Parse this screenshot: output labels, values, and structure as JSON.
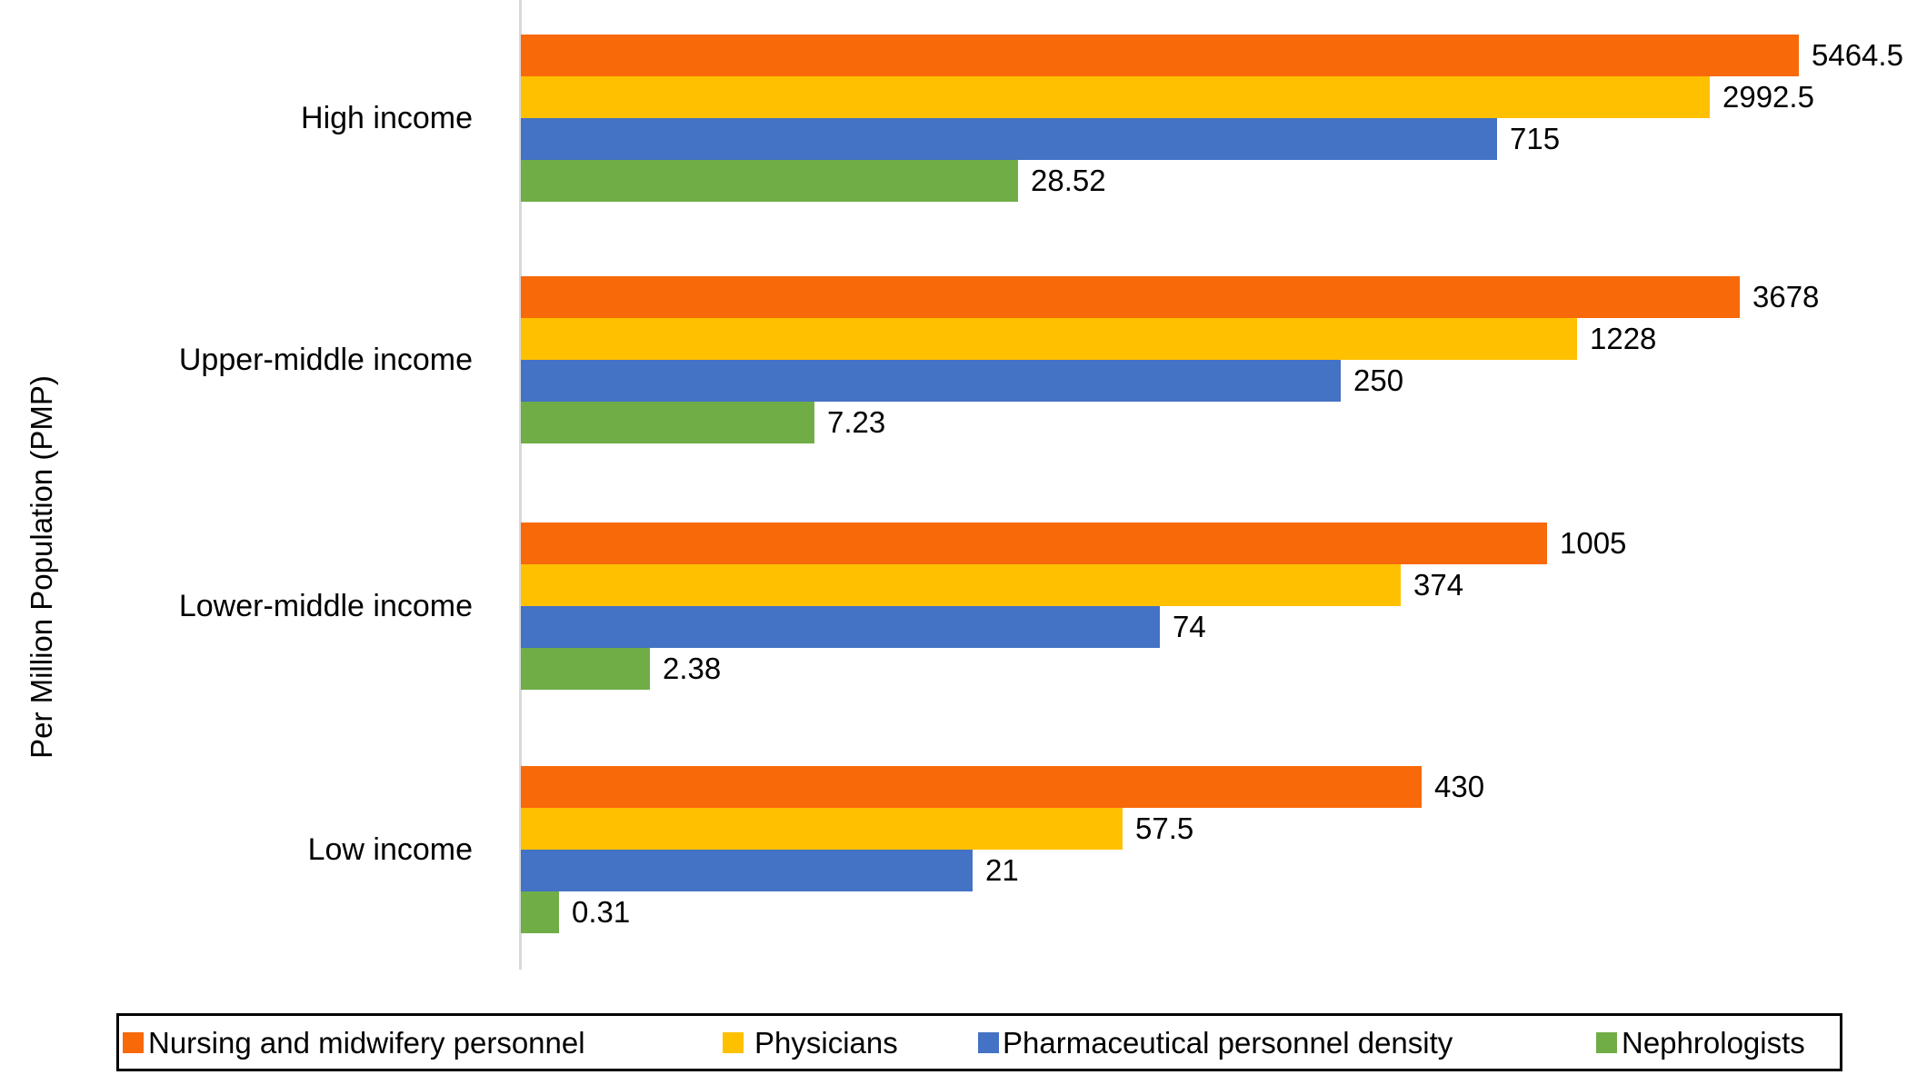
{
  "chart_data": {
    "type": "bar",
    "orientation": "horizontal",
    "x_scale": "log10",
    "title": "",
    "xlabel": "",
    "ylabel": "Per Million Population (PMP)",
    "categories": [
      "High income",
      "Upper-middle income",
      "Lower-middle income",
      "Low income"
    ],
    "series": [
      {
        "name": "Nursing and midwifery personnel",
        "color": "#f8690a",
        "values": [
          5464.5,
          3678,
          1005,
          430
        ]
      },
      {
        "name": "Physicians",
        "color": "#ffc000",
        "values": [
          2992.5,
          1228,
          374,
          57.5
        ]
      },
      {
        "name": "Pharmaceutical personnel density",
        "color": "#4472c4",
        "values": [
          715,
          250,
          74,
          21
        ]
      },
      {
        "name": "Nephrologists",
        "color": "#70ad47",
        "values": [
          28.52,
          7.23,
          2.38,
          0.31
        ]
      }
    ],
    "value_labels": [
      [
        "5464.5",
        "2992.5",
        "715",
        "28.52"
      ],
      [
        "3678",
        "1228",
        "250",
        "7.23"
      ],
      [
        "1005",
        "374",
        "74",
        "2.38"
      ],
      [
        "430",
        "57.5",
        "21",
        "0.31"
      ]
    ],
    "value_labels_visible": true,
    "grid": false,
    "legend_position": "bottom",
    "axis_line_color": "#d9d9d9",
    "text_color": "#000000"
  }
}
